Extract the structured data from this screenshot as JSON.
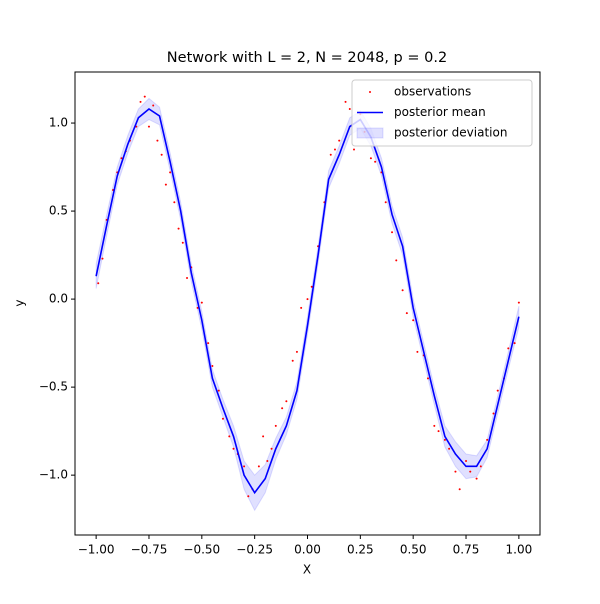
{
  "chart_data": {
    "type": "line",
    "title": "Network with L = 2, N = 2048, p = 0.2",
    "xlabel": "X",
    "ylabel": "y",
    "xlim": [
      -1.1,
      1.1
    ],
    "ylim": [
      -1.34,
      1.29
    ],
    "xticks": [
      {
        "value": -1,
        "label": "−1.00"
      },
      {
        "value": -0.75,
        "label": "−0.75"
      },
      {
        "value": -0.5,
        "label": "−0.50"
      },
      {
        "value": -0.25,
        "label": "−0.25"
      },
      {
        "value": 0,
        "label": "0.00"
      },
      {
        "value": 0.25,
        "label": "0.25"
      },
      {
        "value": 0.5,
        "label": "0.50"
      },
      {
        "value": 0.75,
        "label": "0.75"
      },
      {
        "value": 1,
        "label": "1.00"
      }
    ],
    "yticks": [
      {
        "value": -1,
        "label": "−1.0"
      },
      {
        "value": -0.5,
        "label": "−0.5"
      },
      {
        "value": 0,
        "label": "0.0"
      },
      {
        "value": 0.5,
        "label": "0.5"
      },
      {
        "value": 1,
        "label": "1.0"
      }
    ],
    "legend": "upper right",
    "x": [
      -1.0,
      -0.95,
      -0.9,
      -0.85,
      -0.8,
      -0.75,
      -0.7,
      -0.65,
      -0.6,
      -0.55,
      -0.5,
      -0.45,
      -0.4,
      -0.35,
      -0.3,
      -0.25,
      -0.2,
      -0.15,
      -0.1,
      -0.05,
      0.0,
      0.05,
      0.1,
      0.15,
      0.2,
      0.25,
      0.3,
      0.35,
      0.4,
      0.45,
      0.5,
      0.55,
      0.6,
      0.65,
      0.7,
      0.75,
      0.8,
      0.85,
      0.9,
      0.95,
      1.0
    ],
    "series": [
      {
        "name": "observations",
        "type": "scatter",
        "color": "#ff0000",
        "x": [
          -0.99,
          -0.97,
          -0.95,
          -0.92,
          -0.9,
          -0.88,
          -0.86,
          -0.84,
          -0.81,
          -0.79,
          -0.77,
          -0.75,
          -0.73,
          -0.71,
          -0.69,
          -0.67,
          -0.65,
          -0.63,
          -0.61,
          -0.59,
          -0.57,
          -0.55,
          -0.52,
          -0.5,
          -0.47,
          -0.45,
          -0.42,
          -0.4,
          -0.37,
          -0.35,
          -0.33,
          -0.3,
          -0.28,
          -0.26,
          -0.23,
          -0.21,
          -0.19,
          -0.17,
          -0.15,
          -0.12,
          -0.1,
          -0.07,
          -0.05,
          -0.03,
          0.0,
          0.02,
          0.05,
          0.08,
          0.11,
          0.13,
          0.15,
          0.18,
          0.2,
          0.22,
          0.25,
          0.27,
          0.3,
          0.32,
          0.35,
          0.37,
          0.4,
          0.42,
          0.45,
          0.47,
          0.5,
          0.52,
          0.55,
          0.57,
          0.6,
          0.62,
          0.65,
          0.67,
          0.7,
          0.72,
          0.75,
          0.77,
          0.8,
          0.82,
          0.85,
          0.88,
          0.9,
          0.93,
          0.95,
          0.98,
          1.0
        ],
        "values": [
          0.09,
          0.23,
          0.45,
          0.62,
          0.72,
          0.8,
          0.84,
          0.9,
          0.98,
          1.12,
          1.15,
          0.98,
          1.1,
          0.9,
          0.82,
          0.65,
          0.72,
          0.55,
          0.4,
          0.32,
          0.12,
          0.18,
          -0.05,
          -0.02,
          -0.25,
          -0.38,
          -0.52,
          -0.68,
          -0.78,
          -0.85,
          -0.88,
          -0.95,
          -1.12,
          -1.08,
          -0.95,
          -0.78,
          -0.92,
          -0.85,
          -0.72,
          -0.62,
          -0.58,
          -0.35,
          -0.3,
          -0.05,
          0.0,
          0.07,
          0.3,
          0.55,
          0.82,
          0.85,
          0.9,
          1.12,
          1.08,
          0.85,
          1.05,
          0.95,
          0.8,
          0.78,
          0.72,
          0.55,
          0.38,
          0.22,
          0.05,
          -0.08,
          -0.12,
          -0.3,
          -0.32,
          -0.45,
          -0.72,
          -0.75,
          -0.8,
          -0.85,
          -0.98,
          -1.08,
          -0.92,
          -0.98,
          -1.02,
          -0.95,
          -0.8,
          -0.65,
          -0.52,
          -0.45,
          -0.28,
          -0.25,
          -0.02
        ]
      },
      {
        "name": "posterior mean",
        "color": "#0000ff",
        "values": [
          0.13,
          0.42,
          0.7,
          0.88,
          1.03,
          1.08,
          1.04,
          0.78,
          0.5,
          0.15,
          -0.12,
          -0.45,
          -0.62,
          -0.78,
          -1.0,
          -1.1,
          -1.02,
          -0.85,
          -0.72,
          -0.52,
          -0.15,
          0.25,
          0.68,
          0.82,
          0.98,
          1.02,
          0.92,
          0.75,
          0.48,
          0.3,
          -0.05,
          -0.3,
          -0.55,
          -0.78,
          -0.88,
          -0.95,
          -0.95,
          -0.85,
          -0.6,
          -0.35,
          -0.1
        ]
      },
      {
        "name": "posterior deviation",
        "color": "#0000ff",
        "errors": [
          0.07,
          0.06,
          0.05,
          0.05,
          0.05,
          0.06,
          0.05,
          0.05,
          0.05,
          0.05,
          0.05,
          0.05,
          0.05,
          0.06,
          0.08,
          0.1,
          0.08,
          0.06,
          0.05,
          0.05,
          0.05,
          0.05,
          0.05,
          0.05,
          0.05,
          0.05,
          0.05,
          0.05,
          0.05,
          0.05,
          0.05,
          0.05,
          0.05,
          0.06,
          0.07,
          0.07,
          0.06,
          0.05,
          0.05,
          0.05,
          0.06
        ]
      }
    ]
  }
}
